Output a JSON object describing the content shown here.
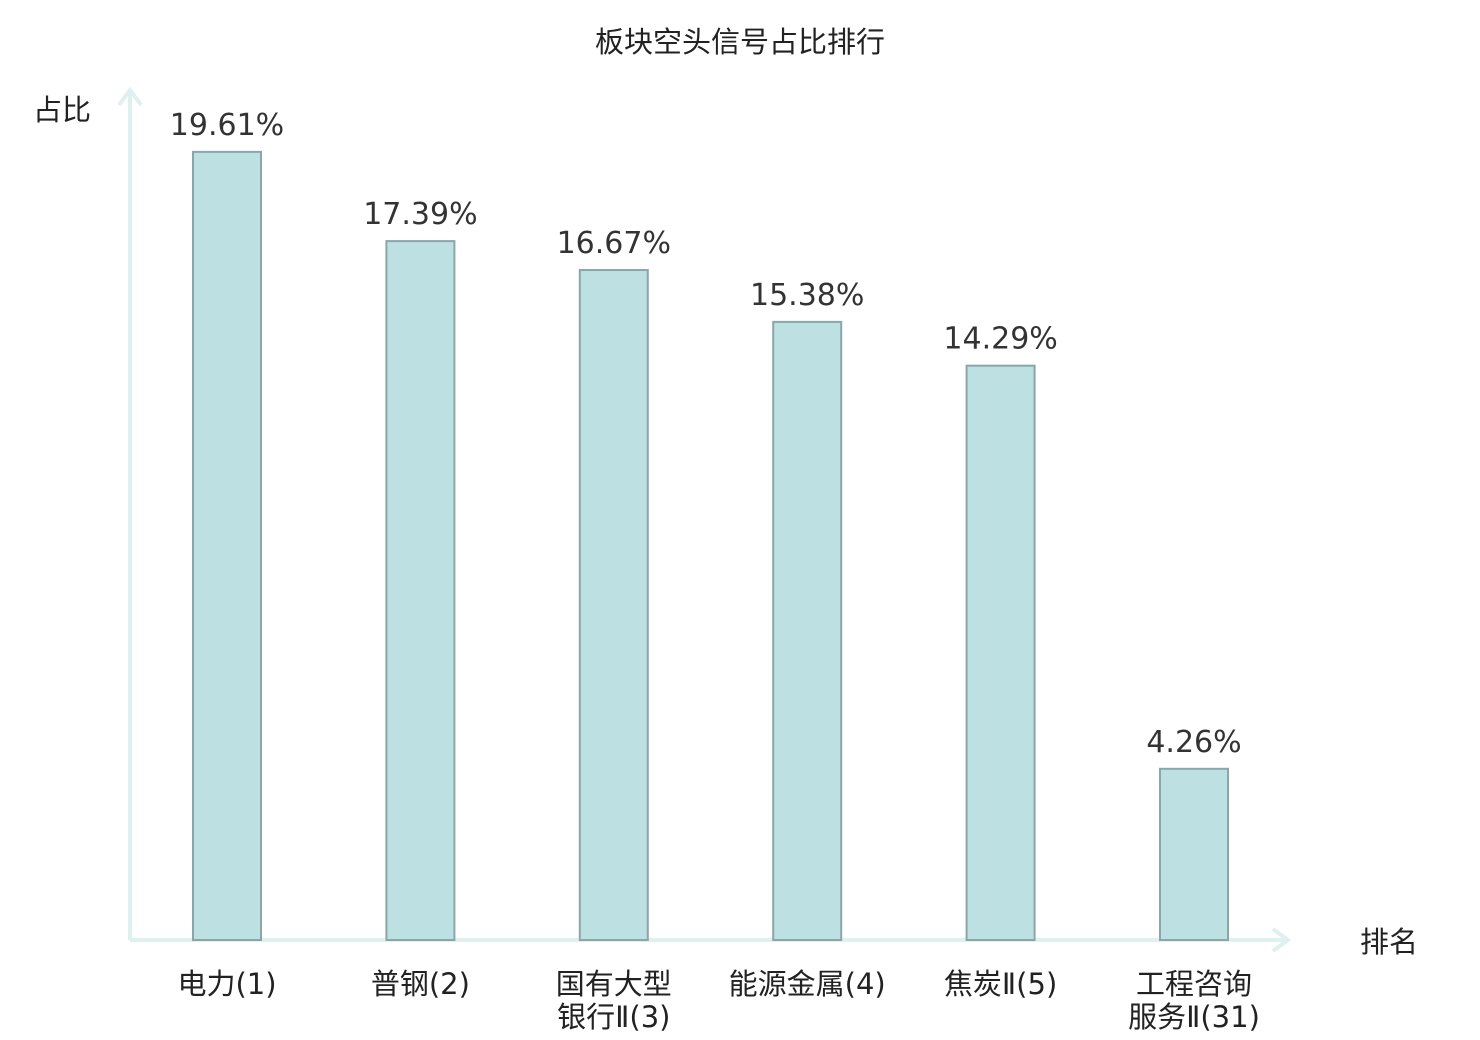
{
  "chart_data": {
    "type": "bar",
    "title": "板块空头信号占比排行",
    "xlabel": "排名",
    "ylabel": "占比",
    "categories": [
      [
        "电力(1)"
      ],
      [
        "普钢(2)"
      ],
      [
        "国有大型",
        "银行Ⅱ(3)"
      ],
      [
        "能源金属(4)"
      ],
      [
        "焦炭Ⅱ(5)"
      ],
      [
        "工程咨询",
        "服务Ⅱ(31)"
      ]
    ],
    "values": [
      19.61,
      17.39,
      16.67,
      15.38,
      14.29,
      4.26
    ],
    "value_labels": [
      "19.61%",
      "17.39%",
      "16.67%",
      "15.38%",
      "14.29%",
      "4.26%"
    ],
    "highlight_index": 5,
    "ylim": [
      0,
      21.1
    ],
    "grid": false,
    "legend": "none",
    "colors": {
      "bar_fill": "#bde0e3",
      "bar_stroke": "#8aa6a8",
      "axis": "#dff1ee",
      "highlight_text": "#e0161a",
      "text": "#222222",
      "value_text": "#333333"
    }
  }
}
